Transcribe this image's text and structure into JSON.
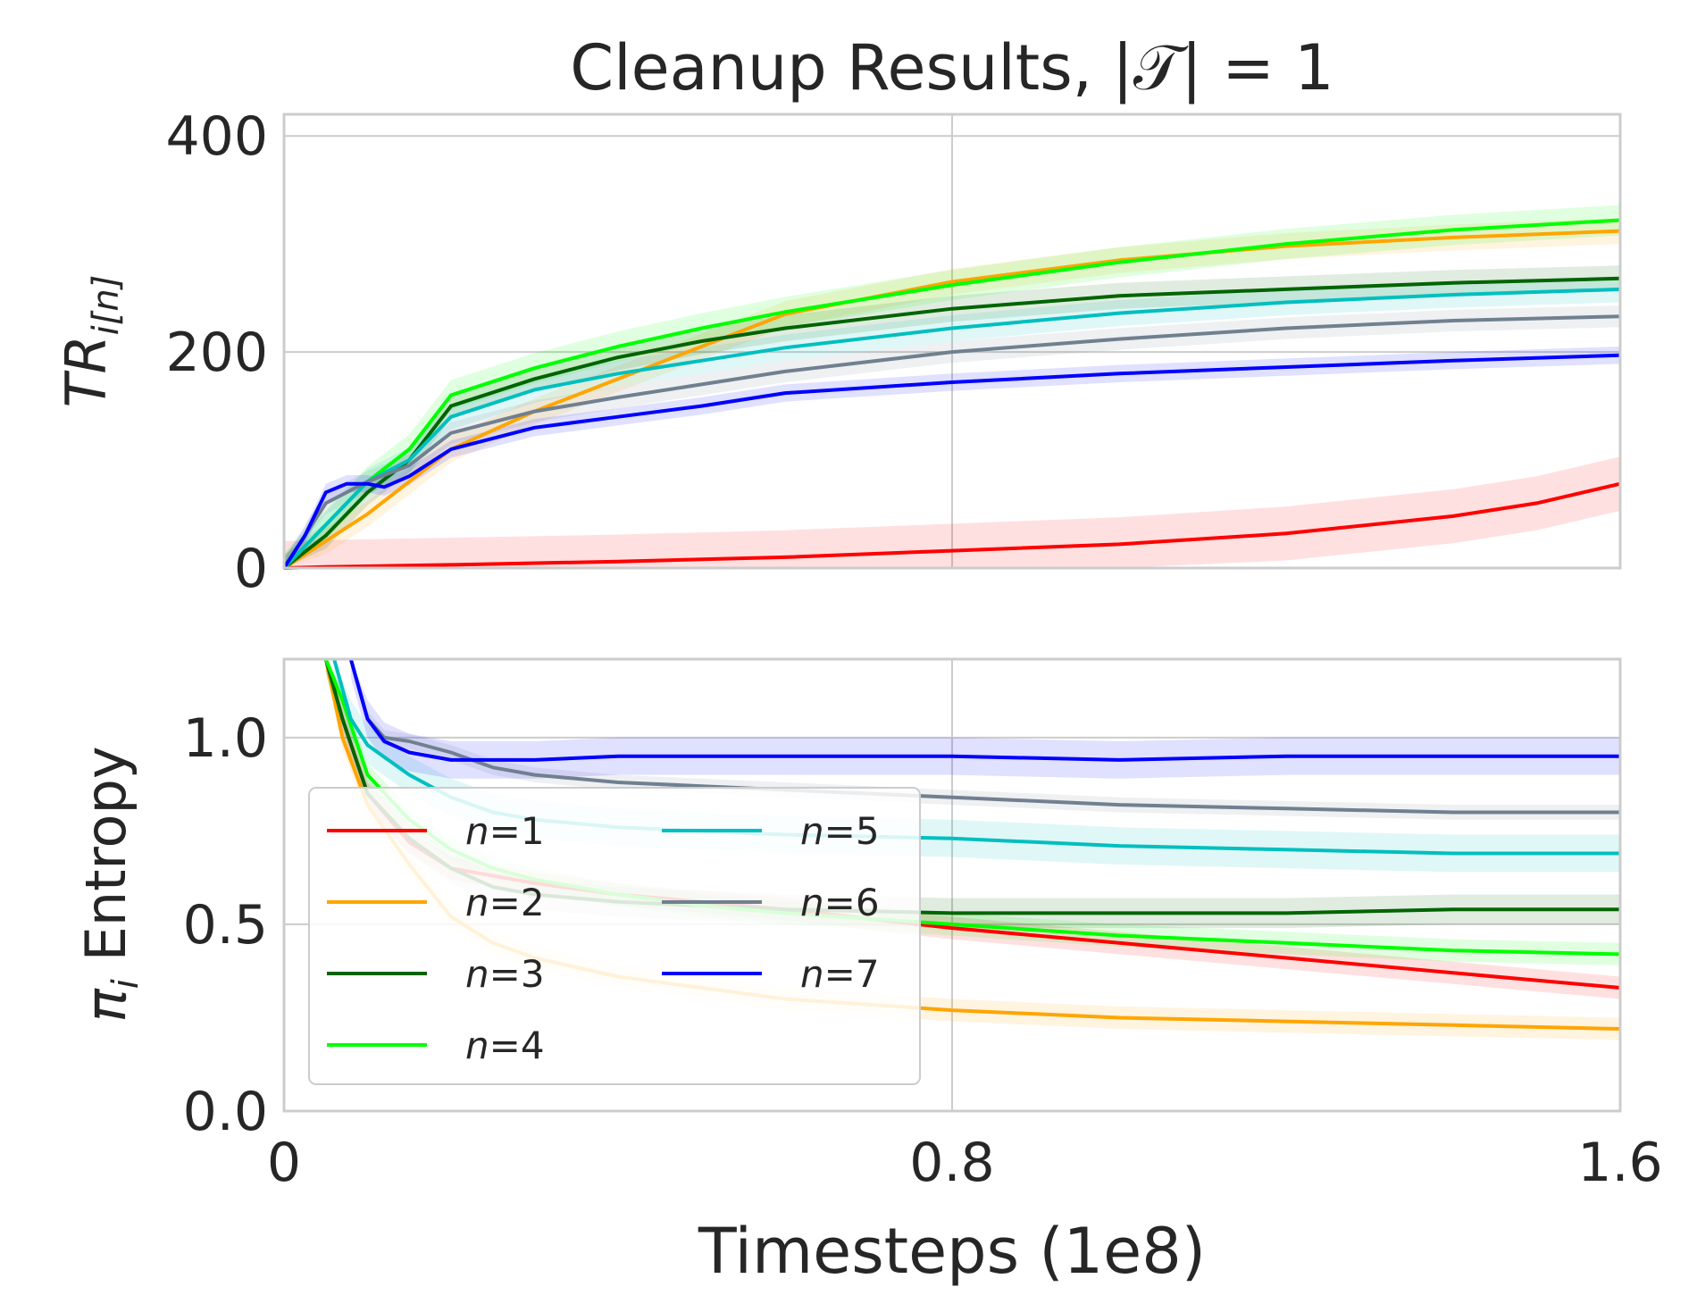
{
  "chart_data": {
    "type": "line",
    "title": "Cleanup Results, |𝒯| = 1",
    "xlabel": "Timesteps (1e8)",
    "shared_x": true,
    "xlim": [
      0,
      1.6
    ],
    "xticks": [
      "0",
      "0.8",
      "1.6"
    ],
    "colors": {
      "n1": "#ff0000",
      "n2": "#ffa500",
      "n3": "#006400",
      "n4": "#00ff00",
      "n5": "#00bfbf",
      "n6": "#708090",
      "n7": "#0000ff"
    },
    "legend": {
      "placement": "lower-left of bottom panel",
      "columns": 2,
      "entries": [
        {
          "label": "n=1",
          "color": "#ff0000"
        },
        {
          "label": "n=2",
          "color": "#ffa500"
        },
        {
          "label": "n=3",
          "color": "#006400"
        },
        {
          "label": "n=4",
          "color": "#00ff00"
        },
        {
          "label": "n=5",
          "color": "#00bfbf"
        },
        {
          "label": "n=6",
          "color": "#708090"
        },
        {
          "label": "n=7",
          "color": "#0000ff"
        }
      ]
    },
    "panels": [
      {
        "id": "top",
        "ylabel": "TR_i[n]",
        "ylim": [
          0,
          420
        ],
        "yticks": [
          "0",
          "200",
          "400"
        ],
        "grid": true,
        "series": [
          {
            "name": "n=1",
            "x": [
              0,
              0.05,
              0.2,
              0.4,
              0.6,
              0.8,
              1.0,
              1.2,
              1.4,
              1.5,
              1.6
            ],
            "y": [
              0,
              1,
              3,
              6,
              10,
              16,
              22,
              32,
              48,
              60,
              78
            ],
            "band": 25
          },
          {
            "name": "n=2",
            "x": [
              0,
              0.05,
              0.1,
              0.15,
              0.2,
              0.3,
              0.4,
              0.5,
              0.6,
              0.8,
              1.0,
              1.2,
              1.4,
              1.6
            ],
            "y": [
              0,
              25,
              50,
              80,
              110,
              145,
              175,
              205,
              235,
              265,
              285,
              298,
              306,
              312
            ],
            "band": 12
          },
          {
            "name": "n=3",
            "x": [
              0,
              0.05,
              0.1,
              0.15,
              0.2,
              0.3,
              0.4,
              0.5,
              0.6,
              0.8,
              1.0,
              1.2,
              1.4,
              1.6
            ],
            "y": [
              0,
              30,
              70,
              100,
              150,
              175,
              195,
              210,
              222,
              240,
              252,
              258,
              264,
              268
            ],
            "band": 12
          },
          {
            "name": "n=4",
            "x": [
              0,
              0.05,
              0.1,
              0.15,
              0.2,
              0.3,
              0.4,
              0.5,
              0.6,
              0.8,
              1.0,
              1.2,
              1.4,
              1.6
            ],
            "y": [
              0,
              40,
              80,
              110,
              160,
              185,
              205,
              222,
              237,
              262,
              283,
              300,
              313,
              322
            ],
            "band": 14
          },
          {
            "name": "n=5",
            "x": [
              0,
              0.05,
              0.1,
              0.15,
              0.2,
              0.3,
              0.4,
              0.5,
              0.6,
              0.8,
              1.0,
              1.2,
              1.4,
              1.6
            ],
            "y": [
              0,
              40,
              80,
              100,
              140,
              165,
              180,
              192,
              204,
              222,
              236,
              246,
              253,
              258
            ],
            "band": 12
          },
          {
            "name": "n=6",
            "x": [
              0,
              0.05,
              0.1,
              0.15,
              0.2,
              0.3,
              0.4,
              0.5,
              0.6,
              0.8,
              1.0,
              1.2,
              1.4,
              1.6
            ],
            "y": [
              0,
              60,
              80,
              95,
              125,
              145,
              158,
              170,
              182,
              200,
              212,
              222,
              229,
              233
            ],
            "band": 10
          },
          {
            "name": "n=7",
            "x": [
              0,
              0.025,
              0.05,
              0.075,
              0.1,
              0.12,
              0.15,
              0.2,
              0.3,
              0.4,
              0.5,
              0.6,
              0.8,
              1.0,
              1.2,
              1.4,
              1.6
            ],
            "y": [
              0,
              30,
              70,
              78,
              78,
              75,
              85,
              110,
              130,
              140,
              150,
              162,
              172,
              180,
              186,
              192,
              197
            ],
            "band": 8
          }
        ]
      },
      {
        "id": "bottom",
        "ylabel": "π_i Entropy",
        "ylim": [
          0,
          1.21
        ],
        "yticks": [
          "0.0",
          "0.5",
          "1.0"
        ],
        "grid": true,
        "series": [
          {
            "name": "n=1",
            "x": [
              0.05,
              0.07,
              0.1,
              0.15,
              0.2,
              0.3,
              0.4,
              0.5,
              0.6,
              0.8,
              1.0,
              1.2,
              1.4,
              1.6
            ],
            "y": [
              1.21,
              1.05,
              0.85,
              0.72,
              0.65,
              0.61,
              0.58,
              0.56,
              0.54,
              0.49,
              0.45,
              0.41,
              0.37,
              0.33
            ],
            "band": 0.03
          },
          {
            "name": "n=2",
            "x": [
              0.05,
              0.07,
              0.1,
              0.15,
              0.2,
              0.25,
              0.3,
              0.4,
              0.5,
              0.6,
              0.8,
              1.0,
              1.2,
              1.4,
              1.6
            ],
            "y": [
              1.21,
              1.0,
              0.82,
              0.66,
              0.52,
              0.45,
              0.41,
              0.36,
              0.33,
              0.3,
              0.27,
              0.25,
              0.24,
              0.23,
              0.22
            ],
            "band": 0.03
          },
          {
            "name": "n=3",
            "x": [
              0.05,
              0.07,
              0.1,
              0.15,
              0.2,
              0.25,
              0.3,
              0.4,
              0.5,
              0.6,
              0.8,
              1.0,
              1.2,
              1.4,
              1.6
            ],
            "y": [
              1.21,
              1.05,
              0.85,
              0.73,
              0.65,
              0.6,
              0.58,
              0.56,
              0.55,
              0.54,
              0.53,
              0.53,
              0.53,
              0.54,
              0.54
            ],
            "band": 0.04
          },
          {
            "name": "n=4",
            "x": [
              0.05,
              0.07,
              0.1,
              0.15,
              0.2,
              0.25,
              0.3,
              0.4,
              0.5,
              0.6,
              0.8,
              1.0,
              1.2,
              1.4,
              1.6
            ],
            "y": [
              1.21,
              1.1,
              0.9,
              0.78,
              0.7,
              0.65,
              0.62,
              0.58,
              0.55,
              0.53,
              0.5,
              0.47,
              0.45,
              0.43,
              0.42
            ],
            "band": 0.03
          },
          {
            "name": "n=5",
            "x": [
              0.06,
              0.08,
              0.1,
              0.15,
              0.2,
              0.25,
              0.3,
              0.4,
              0.5,
              0.6,
              0.8,
              1.0,
              1.2,
              1.4,
              1.6
            ],
            "y": [
              1.21,
              1.05,
              0.98,
              0.9,
              0.84,
              0.8,
              0.78,
              0.76,
              0.75,
              0.74,
              0.73,
              0.71,
              0.7,
              0.69,
              0.69
            ],
            "band": 0.05
          },
          {
            "name": "n=6",
            "x": [
              0.08,
              0.1,
              0.12,
              0.15,
              0.2,
              0.25,
              0.3,
              0.4,
              0.5,
              0.6,
              0.8,
              1.0,
              1.2,
              1.4,
              1.6
            ],
            "y": [
              1.21,
              1.05,
              1.0,
              0.99,
              0.96,
              0.92,
              0.9,
              0.88,
              0.87,
              0.86,
              0.84,
              0.82,
              0.81,
              0.8,
              0.8
            ],
            "band": 0.02
          },
          {
            "name": "n=7",
            "x": [
              0.08,
              0.1,
              0.12,
              0.15,
              0.2,
              0.25,
              0.3,
              0.4,
              0.5,
              0.6,
              0.8,
              1.0,
              1.2,
              1.4,
              1.6
            ],
            "y": [
              1.21,
              1.05,
              0.99,
              0.96,
              0.94,
              0.94,
              0.94,
              0.95,
              0.95,
              0.95,
              0.95,
              0.94,
              0.95,
              0.95,
              0.95
            ],
            "band": 0.05
          }
        ]
      }
    ]
  }
}
